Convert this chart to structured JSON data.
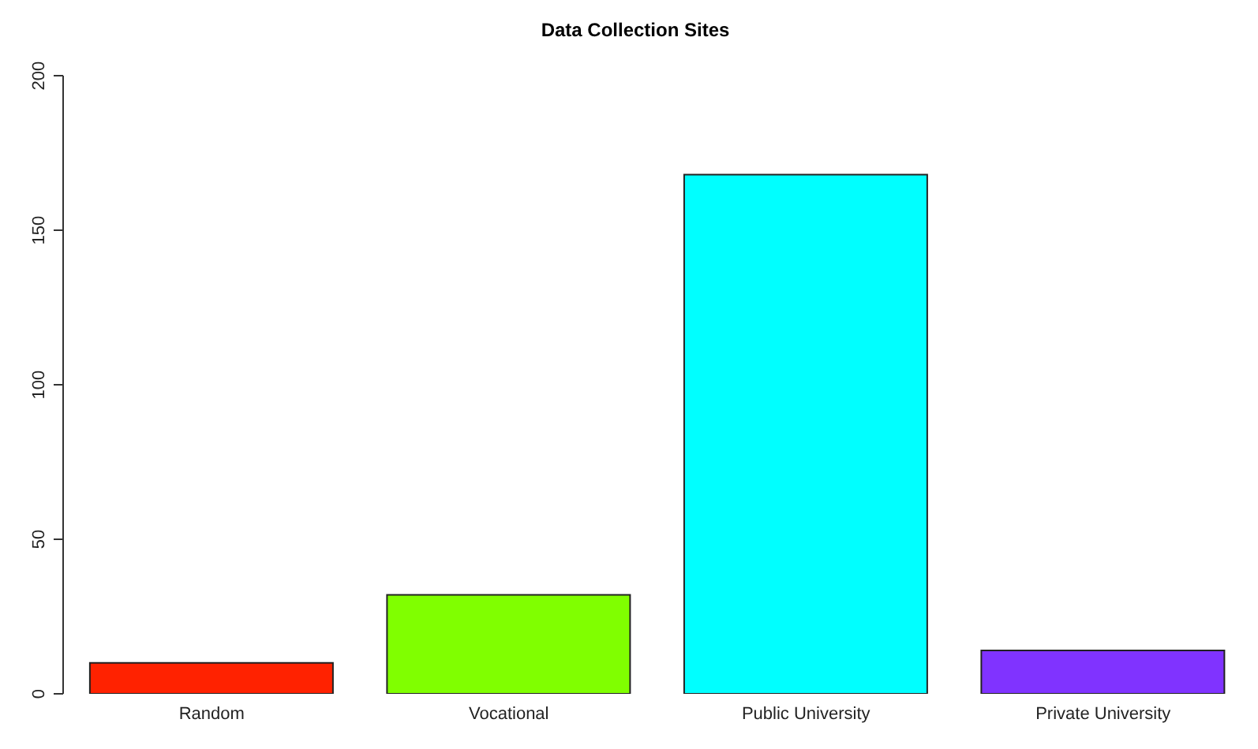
{
  "chart_data": {
    "type": "bar",
    "title": "Data Collection Sites",
    "categories": [
      "Random",
      "Vocational",
      "Public University",
      "Private University"
    ],
    "values": [
      10,
      32,
      168,
      14
    ],
    "colors": [
      "#ff2200",
      "#80ff00",
      "#00ffff",
      "#8033ff"
    ],
    "ylim": [
      0,
      200
    ],
    "yticks": [
      0,
      50,
      100,
      150,
      200
    ],
    "grid": false,
    "legend": false
  }
}
